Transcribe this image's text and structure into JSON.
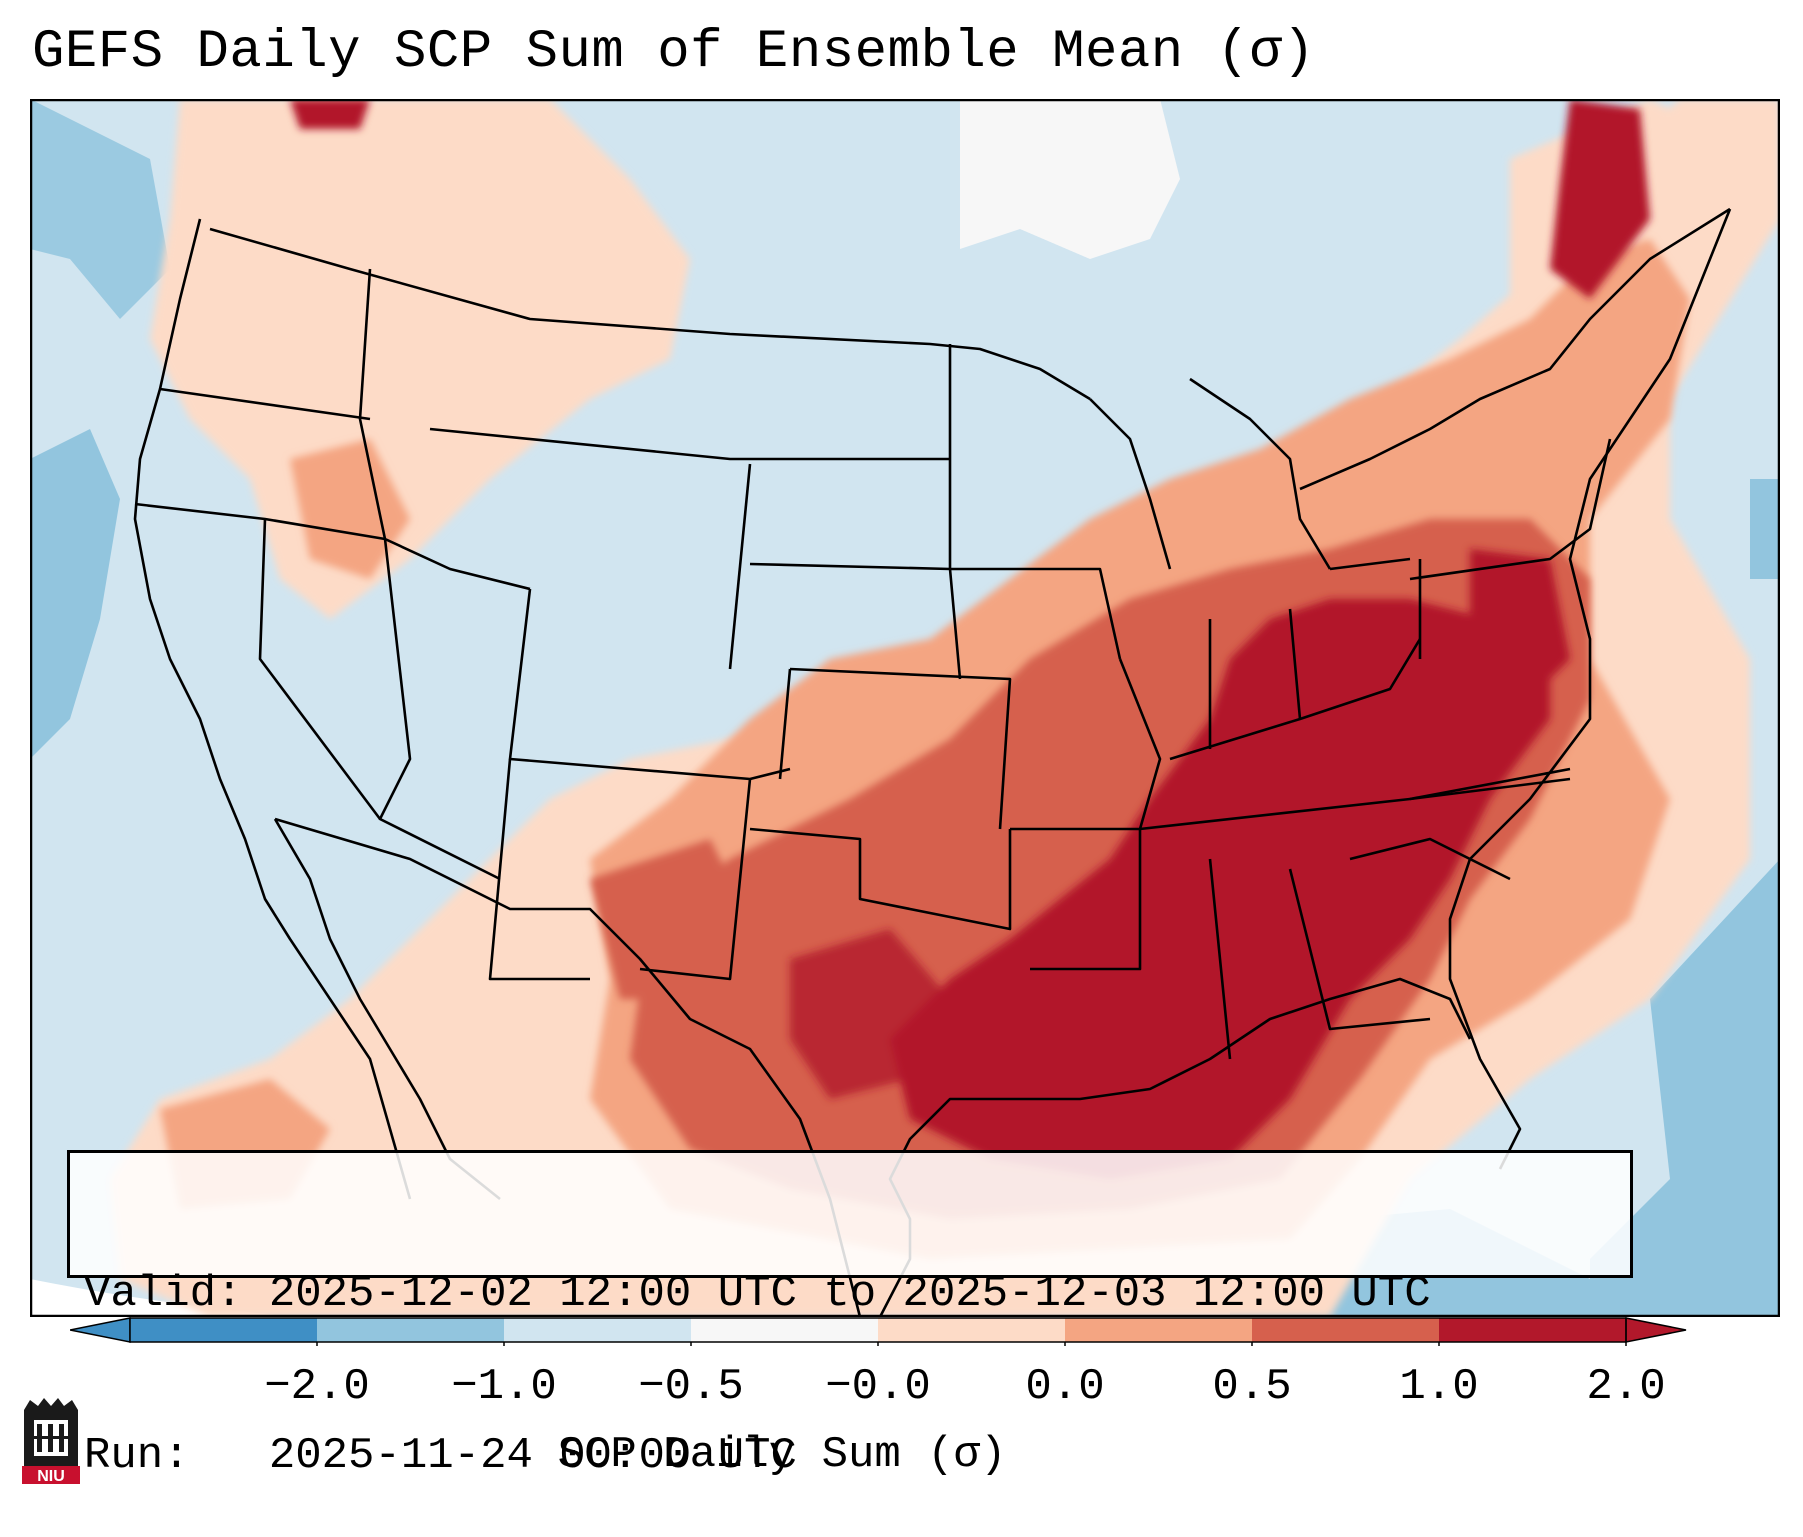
{
  "title": "GEFS Daily SCP Sum of Ensemble Mean (σ)",
  "info": {
    "valid_line": "Valid: 2025-12-02 12:00 UTC to 2025-12-03 12:00 UTC",
    "run_line": "Run:   2025-11-24 00:00 UTC"
  },
  "colorbar": {
    "label": "SCP Daily Sum (σ)",
    "ticks": [
      "−2.0",
      "−1.0",
      "−0.5",
      "−0.0",
      "0.0",
      "0.5",
      "1.0",
      "2.0"
    ],
    "colors": [
      "#3f8fc5",
      "#92c5de",
      "#d1e5f0",
      "#f7f7f7",
      "#fddbc7",
      "#f4a582",
      "#d6604d",
      "#b2182b"
    ],
    "extend": "both"
  },
  "logo": {
    "text": "NIU",
    "color": "#c8102e"
  },
  "map": {
    "region": "Contiguous United States",
    "background_color": "#d1e5f0"
  }
}
